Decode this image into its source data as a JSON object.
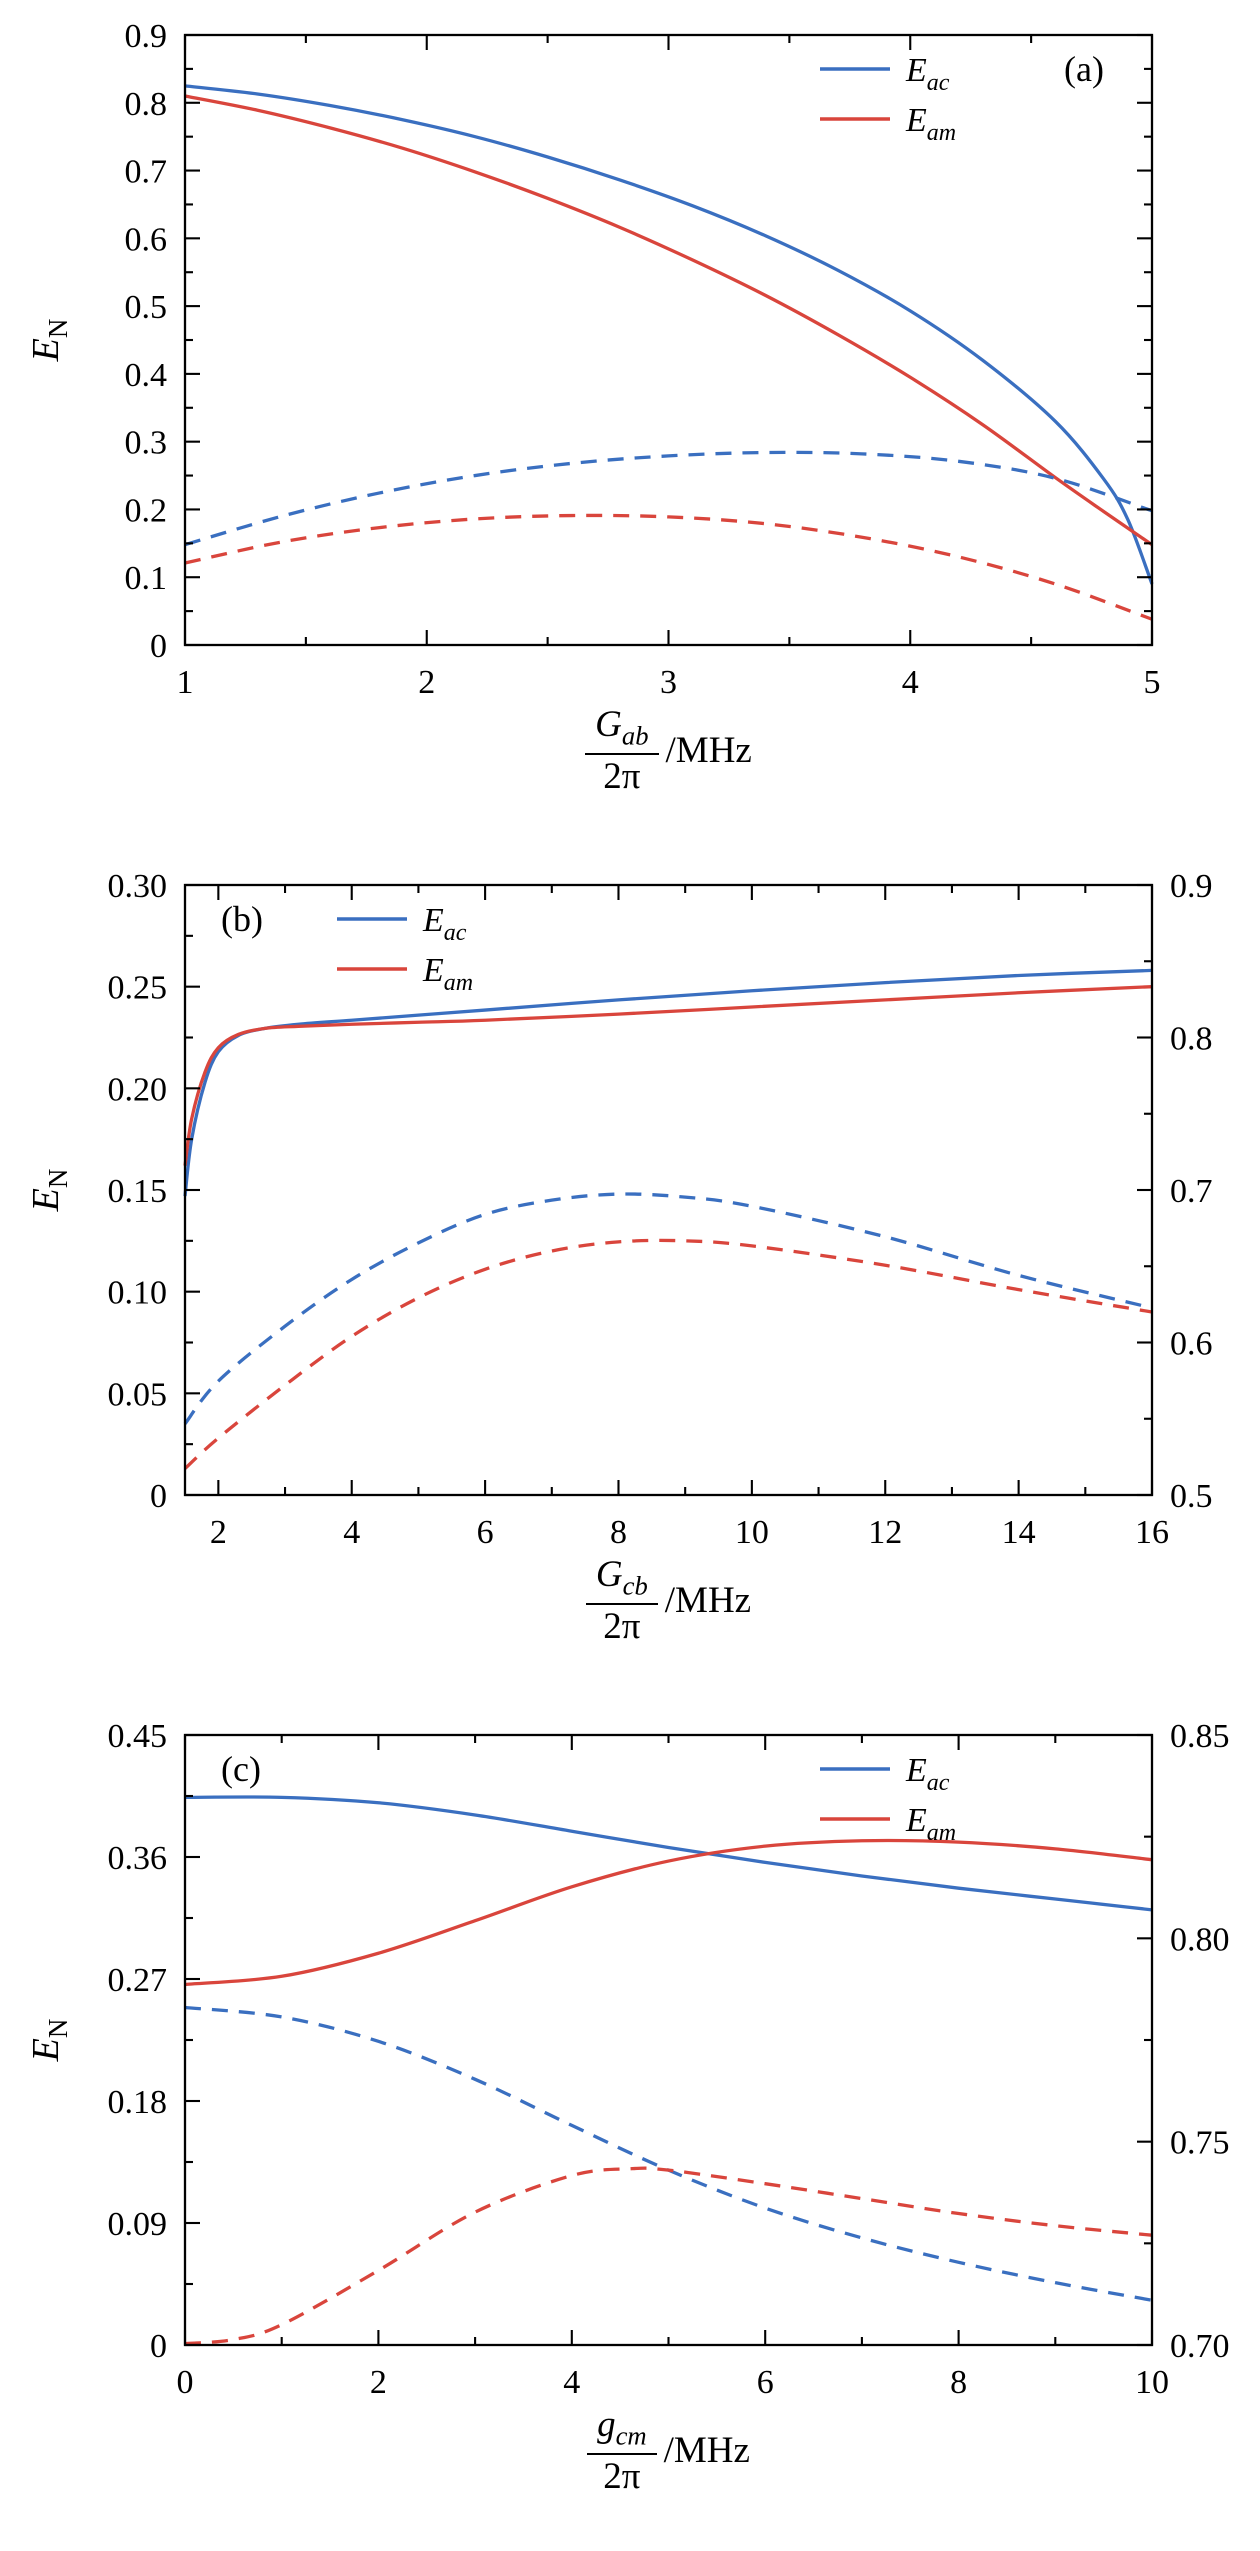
{
  "figure": {
    "background": "#ffffff",
    "text_color": "#000000",
    "colors": {
      "blue": "#3a6fc0",
      "red": "#d9453c"
    }
  },
  "chart_data": [
    {
      "type": "line",
      "panel_label": "(a)",
      "panel_label_pos": "top-right",
      "ylabel": {
        "main": "E",
        "sub": "N"
      },
      "xlabel": {
        "num_main": "G",
        "num_sub": "ab",
        "den": "2π",
        "unit": "/MHz"
      },
      "xlim": [
        1,
        5
      ],
      "xticks": [
        1,
        2,
        3,
        4,
        5
      ],
      "xtick_labels": [
        "1",
        "2",
        "3",
        "4",
        "5"
      ],
      "ylim": [
        0,
        0.9
      ],
      "yticks": [
        0,
        0.1,
        0.2,
        0.3,
        0.4,
        0.5,
        0.6,
        0.7,
        0.8,
        0.9
      ],
      "ytick_labels": [
        "0",
        "0.1",
        "0.2",
        "0.3",
        "0.4",
        "0.5",
        "0.6",
        "0.7",
        "0.8",
        "0.9"
      ],
      "legend": {
        "position": "top-right",
        "entries": [
          {
            "main": "E",
            "sub": "ac",
            "color": "blue"
          },
          {
            "main": "E",
            "sub": "am",
            "color": "red"
          }
        ]
      },
      "series": [
        {
          "name": "E_ac_solid",
          "color": "blue",
          "dashed": false,
          "x": [
            1,
            1.3,
            1.6,
            1.9,
            2.2,
            2.5,
            2.8,
            3.1,
            3.4,
            3.7,
            4,
            4.3,
            4.6,
            4.8,
            4.9,
            5
          ],
          "y": [
            0.825,
            0.813,
            0.796,
            0.775,
            0.75,
            0.72,
            0.686,
            0.648,
            0.604,
            0.553,
            0.493,
            0.42,
            0.33,
            0.245,
            0.185,
            0.09
          ]
        },
        {
          "name": "E_am_solid",
          "color": "red",
          "dashed": false,
          "x": [
            1,
            1.3,
            1.6,
            1.9,
            2.2,
            2.5,
            2.8,
            3.1,
            3.4,
            3.7,
            4,
            4.3,
            4.6,
            4.8,
            5
          ],
          "y": [
            0.81,
            0.789,
            0.763,
            0.733,
            0.698,
            0.659,
            0.616,
            0.568,
            0.516,
            0.458,
            0.395,
            0.325,
            0.247,
            0.197,
            0.148
          ]
        },
        {
          "name": "E_ac_dashed",
          "color": "blue",
          "dashed": true,
          "x": [
            1,
            1.4,
            1.8,
            2.2,
            2.6,
            3,
            3.4,
            3.8,
            4.2,
            4.6,
            5
          ],
          "y": [
            0.148,
            0.19,
            0.224,
            0.25,
            0.268,
            0.279,
            0.284,
            0.282,
            0.271,
            0.246,
            0.198
          ]
        },
        {
          "name": "E_am_dashed",
          "color": "red",
          "dashed": true,
          "x": [
            1,
            1.4,
            1.8,
            2.2,
            2.6,
            3,
            3.4,
            3.8,
            4.2,
            4.6,
            5
          ],
          "y": [
            0.121,
            0.152,
            0.173,
            0.186,
            0.191,
            0.189,
            0.179,
            0.159,
            0.13,
            0.09,
            0.038
          ]
        }
      ]
    },
    {
      "type": "line",
      "panel_label": "(b)",
      "panel_label_pos": "top-left",
      "ylabel": {
        "main": "E",
        "sub": "N"
      },
      "xlabel": {
        "num_main": "G",
        "num_sub": "cb",
        "den": "2π",
        "unit": "/MHz"
      },
      "xlim": [
        1.5,
        16
      ],
      "xticks": [
        2,
        4,
        6,
        8,
        10,
        12,
        14,
        16
      ],
      "xtick_labels": [
        "2",
        "4",
        "6",
        "8",
        "10",
        "12",
        "14",
        "16"
      ],
      "ylim": [
        0,
        0.3
      ],
      "yticks": [
        0,
        0.05,
        0.1,
        0.15,
        0.2,
        0.25,
        0.3
      ],
      "ytick_labels": [
        "0",
        "0.05",
        "0.10",
        "0.15",
        "0.20",
        "0.25",
        "0.30"
      ],
      "y2lim": [
        0.5,
        0.9
      ],
      "y2ticks": [
        0.5,
        0.6,
        0.7,
        0.8,
        0.9
      ],
      "y2tick_labels": [
        "0.5",
        "0.6",
        "0.7",
        "0.8",
        "0.9"
      ],
      "legend": {
        "position": "top-left",
        "entries": [
          {
            "main": "E",
            "sub": "ac",
            "color": "blue"
          },
          {
            "main": "E",
            "sub": "am",
            "color": "red"
          }
        ]
      },
      "series": [
        {
          "name": "E_ac_solid",
          "color": "blue",
          "dashed": false,
          "x": [
            1.5,
            1.6,
            1.8,
            2,
            2.3,
            2.7,
            3.2,
            4,
            5,
            6,
            8,
            10,
            12,
            14,
            16
          ],
          "y": [
            0.147,
            0.175,
            0.203,
            0.218,
            0.226,
            0.2295,
            0.2315,
            0.2335,
            0.236,
            0.2385,
            0.2435,
            0.248,
            0.252,
            0.2555,
            0.258
          ]
        },
        {
          "name": "E_am_solid",
          "color": "red",
          "dashed": false,
          "x": [
            1.5,
            1.6,
            1.8,
            2,
            2.3,
            2.7,
            3.2,
            4,
            5,
            6,
            8,
            10,
            12,
            14,
            16
          ],
          "y": [
            0.162,
            0.185,
            0.208,
            0.22,
            0.2265,
            0.2295,
            0.2305,
            0.2315,
            0.2325,
            0.2335,
            0.2365,
            0.24,
            0.2435,
            0.247,
            0.25
          ]
        },
        {
          "name": "E_ac_dashed",
          "color": "blue",
          "dashed": true,
          "x": [
            1.5,
            2,
            3,
            4,
            5,
            6,
            7,
            8,
            9,
            10,
            12,
            14,
            16
          ],
          "y": [
            0.035,
            0.056,
            0.083,
            0.106,
            0.124,
            0.138,
            0.145,
            0.148,
            0.1465,
            0.142,
            0.127,
            0.108,
            0.092
          ]
        },
        {
          "name": "E_am_dashed",
          "color": "red",
          "dashed": true,
          "x": [
            1.5,
            2,
            3,
            4,
            5,
            6,
            7,
            8,
            9,
            10,
            12,
            14,
            16
          ],
          "y": [
            0.013,
            0.028,
            0.054,
            0.078,
            0.097,
            0.111,
            0.12,
            0.1245,
            0.125,
            0.1225,
            0.113,
            0.101,
            0.09
          ]
        }
      ]
    },
    {
      "type": "line",
      "panel_label": "(c)",
      "panel_label_pos": "top-left",
      "ylabel": {
        "main": "E",
        "sub": "N"
      },
      "xlabel": {
        "num_main": "g",
        "num_sub": "cm",
        "den": "2π",
        "unit": "/MHz"
      },
      "xlim": [
        0,
        10
      ],
      "xticks": [
        0,
        2,
        4,
        6,
        8,
        10
      ],
      "xtick_labels": [
        "0",
        "2",
        "4",
        "6",
        "8",
        "10"
      ],
      "ylim": [
        0,
        0.45
      ],
      "yticks": [
        0,
        0.09,
        0.18,
        0.27,
        0.36,
        0.45
      ],
      "ytick_labels": [
        "0",
        "0.09",
        "0.18",
        "0.27",
        "0.36",
        "0.45"
      ],
      "y2lim": [
        0.7,
        0.85
      ],
      "y2ticks": [
        0.7,
        0.75,
        0.8,
        0.85
      ],
      "y2tick_labels": [
        "0.70",
        "0.75",
        "0.80",
        "0.85"
      ],
      "legend": {
        "position": "top-right",
        "entries": [
          {
            "main": "E",
            "sub": "ac",
            "color": "blue"
          },
          {
            "main": "E",
            "sub": "am",
            "color": "red"
          }
        ]
      },
      "series": [
        {
          "name": "E_ac_solid",
          "color": "blue",
          "dashed": false,
          "x": [
            0,
            1,
            2,
            3,
            4,
            5,
            6,
            7,
            8,
            9,
            10
          ],
          "y": [
            0.404,
            0.404,
            0.4,
            0.391,
            0.379,
            0.367,
            0.356,
            0.346,
            0.337,
            0.329,
            0.321
          ]
        },
        {
          "name": "E_am_solid",
          "color": "red",
          "dashed": false,
          "x": [
            0,
            1,
            2,
            3,
            4,
            5,
            6,
            7,
            8,
            9,
            10
          ],
          "y": [
            0.266,
            0.272,
            0.289,
            0.313,
            0.338,
            0.357,
            0.368,
            0.372,
            0.371,
            0.366,
            0.358
          ]
        },
        {
          "name": "E_ac_dashed",
          "color": "blue",
          "dashed": true,
          "x": [
            0,
            1,
            2,
            3,
            4,
            5,
            6,
            7,
            8,
            9,
            10
          ],
          "y": [
            0.249,
            0.242,
            0.224,
            0.196,
            0.162,
            0.129,
            0.101,
            0.079,
            0.061,
            0.046,
            0.033
          ]
        },
        {
          "name": "E_am_dashed",
          "color": "red",
          "dashed": true,
          "x": [
            0,
            0.5,
            1,
            2,
            3,
            4,
            4.6,
            5,
            6,
            7,
            8,
            9,
            10
          ],
          "y": [
            0.001,
            0.004,
            0.015,
            0.055,
            0.098,
            0.125,
            0.13,
            0.129,
            0.119,
            0.108,
            0.097,
            0.088,
            0.081
          ]
        }
      ]
    }
  ]
}
